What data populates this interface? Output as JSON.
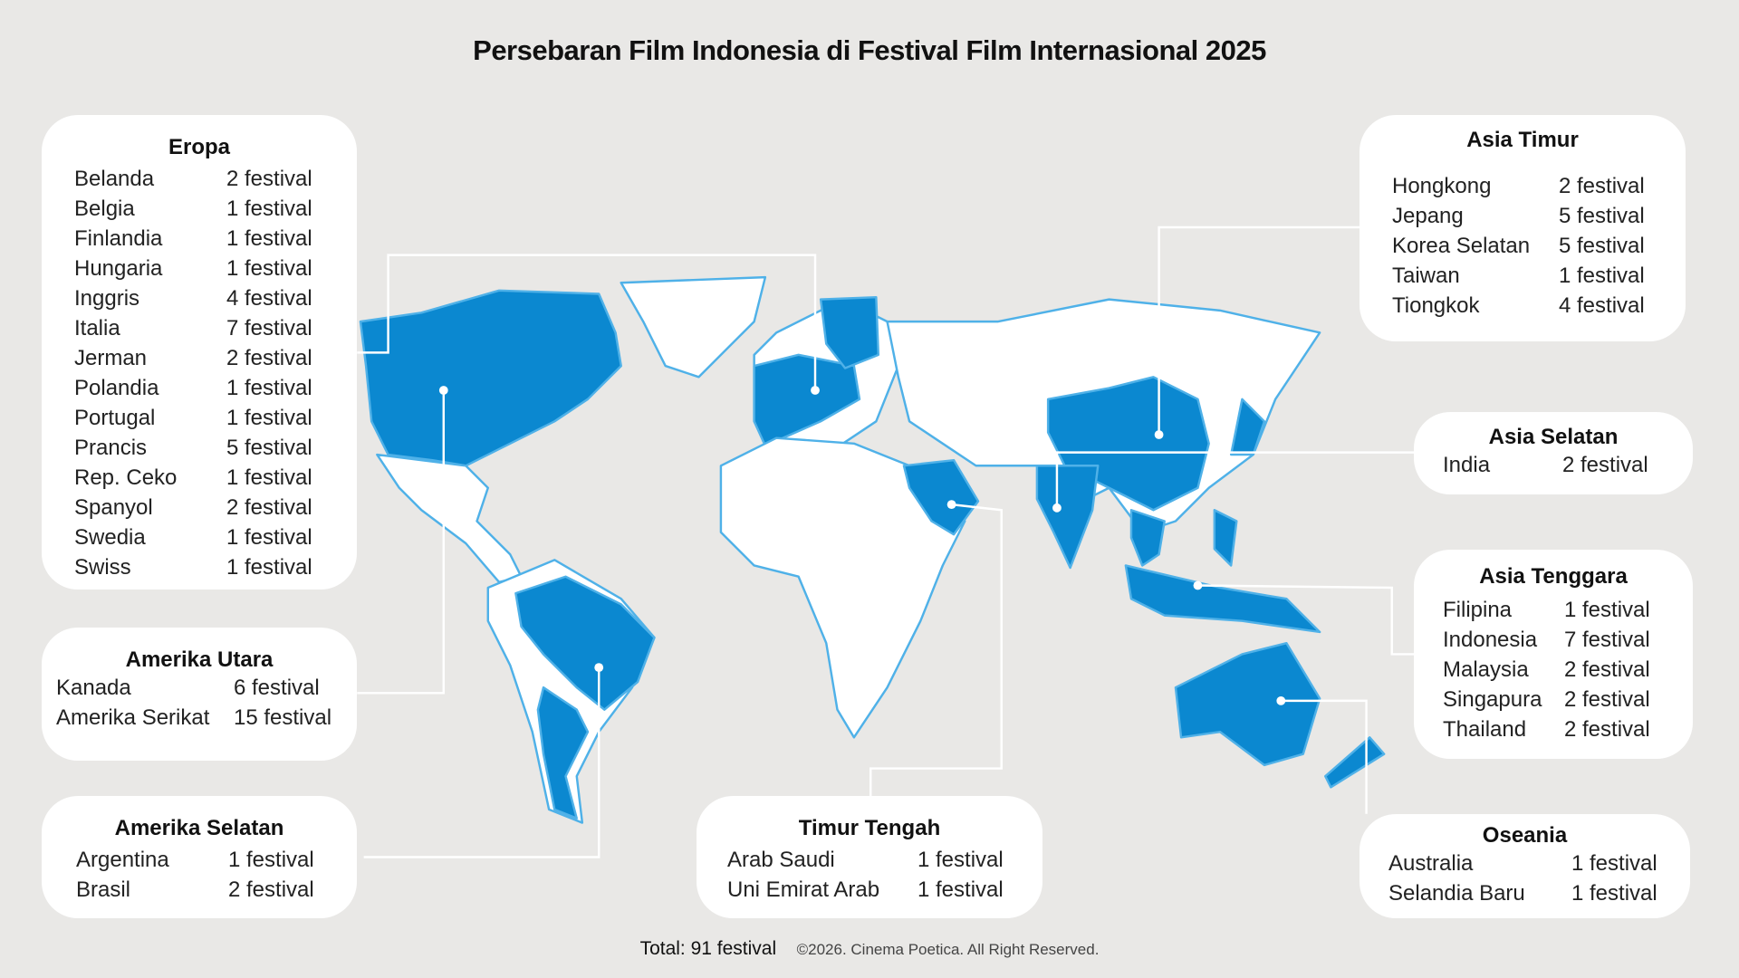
{
  "title": "Persebaran Film Indonesia di Festival Film Internasional 2025",
  "colors": {
    "background": "#e9e8e6",
    "highlight": "#0b88d0",
    "border": "#4fb1e8",
    "land": "#ffffff"
  },
  "regions": [
    {
      "id": "eropa",
      "name": "Eropa",
      "rows": [
        [
          "Belanda",
          "2 festival"
        ],
        [
          "Belgia",
          "1 festival"
        ],
        [
          "Finlandia",
          "1 festival"
        ],
        [
          "Hungaria",
          "1 festival"
        ],
        [
          "Inggris",
          "4 festival"
        ],
        [
          "Italia",
          "7 festival"
        ],
        [
          "Jerman",
          "2 festival"
        ],
        [
          "Polandia",
          "1 festival"
        ],
        [
          "Portugal",
          "1 festival"
        ],
        [
          "Prancis",
          "5 festival"
        ],
        [
          "Rep. Ceko",
          "1 festival"
        ],
        [
          "Spanyol",
          "2 festival"
        ],
        [
          "Swedia",
          "1 festival"
        ],
        [
          "Swiss",
          "1 festival"
        ]
      ]
    },
    {
      "id": "amerika-utara",
      "name": "Amerika Utara",
      "rows": [
        [
          "Kanada",
          "6 festival"
        ],
        [
          "Amerika Serikat",
          "15 festival"
        ]
      ]
    },
    {
      "id": "amerika-selatan",
      "name": "Amerika Selatan",
      "rows": [
        [
          "Argentina",
          "1 festival"
        ],
        [
          "Brasil",
          "2 festival"
        ]
      ]
    },
    {
      "id": "timur-tengah",
      "name": "Timur Tengah",
      "rows": [
        [
          "Arab Saudi",
          "1 festival"
        ],
        [
          "Uni Emirat Arab",
          "1 festival"
        ]
      ]
    },
    {
      "id": "asia-timur",
      "name": "Asia Timur",
      "rows": [
        [
          "Hongkong",
          "2 festival"
        ],
        [
          "Jepang",
          "5 festival"
        ],
        [
          "Korea Selatan",
          "5 festival"
        ],
        [
          "Taiwan",
          "1 festival"
        ],
        [
          "Tiongkok",
          "4 festival"
        ]
      ]
    },
    {
      "id": "asia-selatan",
      "name": "Asia Selatan",
      "rows": [
        [
          "India",
          "2 festival"
        ]
      ]
    },
    {
      "id": "asia-tenggara",
      "name": "Asia Tenggara",
      "rows": [
        [
          "Filipina",
          "1 festival"
        ],
        [
          "Indonesia",
          "7 festival"
        ],
        [
          "Malaysia",
          "2 festival"
        ],
        [
          "Singapura",
          "2 festival"
        ],
        [
          "Thailand",
          "2 festival"
        ]
      ]
    },
    {
      "id": "oseania",
      "name": "Oseania",
      "rows": [
        [
          "Australia",
          "1 festival"
        ],
        [
          "Selandia Baru",
          "1 festival"
        ]
      ]
    }
  ],
  "footer": {
    "total": "Total: 91 festival",
    "copyright": "©2026. Cinema Poetica. All Right Reserved."
  }
}
